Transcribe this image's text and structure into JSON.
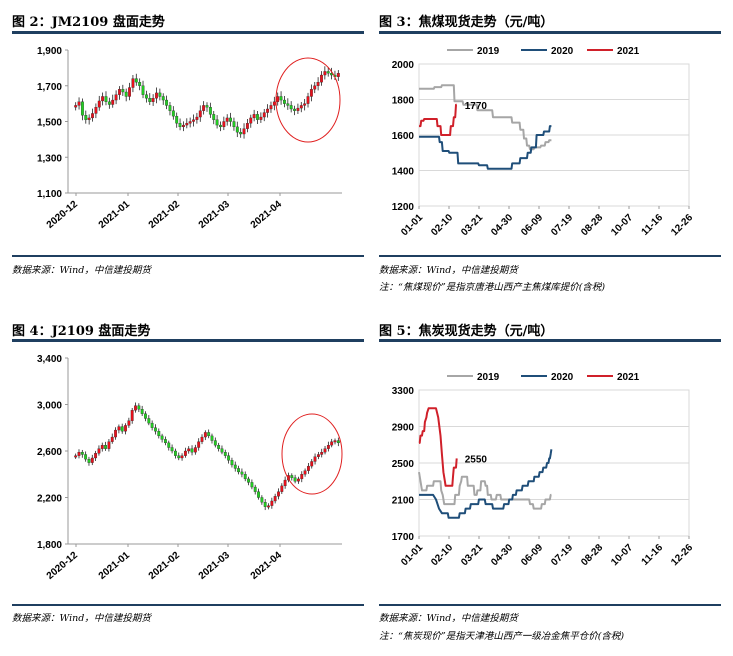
{
  "panels": {
    "p2": {
      "title": "图 2：JM2109 盘面走势",
      "source": "数据来源：Wind，中信建投期货"
    },
    "p3": {
      "title": "图 3：焦煤现货走势（元/吨）",
      "source": "数据来源：Wind，中信建投期货",
      "note": "注：“焦煤现价”是指京唐港山西产主焦煤库提价(含税)"
    },
    "p4": {
      "title": "图 4：J2109 盘面走势",
      "source": "数据来源：Wind，中信建投期货"
    },
    "p5": {
      "title": "图 5：焦炭现货走势（元/吨）",
      "source": "数据来源：Wind，中信建投期货",
      "note": "注：“焦炭现价”是指天津港山西产一级冶金焦平仓价(含税)"
    }
  },
  "colors": {
    "rule": "#1f3f60",
    "up": "#e8101c",
    "down": "#22cc22",
    "wick": "#222222",
    "s2019": "#a6a6a6",
    "s2020": "#1f4e79",
    "s2021": "#d0202a",
    "circle": "#e02020"
  },
  "chart_data": [
    {
      "type": "candlestick",
      "title": "JM2109 盘面走势",
      "x_tick_labels": [
        "2020-12",
        "2021-01",
        "2021-02",
        "2021-03",
        "2021-04"
      ],
      "y_ticks": [
        "1,100",
        "1,300",
        "1,500",
        "1,700",
        "1,900"
      ],
      "ylim": [
        1100,
        1900
      ],
      "approx_close": [
        1590,
        1610,
        1535,
        1510,
        1520,
        1545,
        1580,
        1615,
        1640,
        1610,
        1595,
        1620,
        1650,
        1680,
        1665,
        1640,
        1690,
        1740,
        1720,
        1700,
        1650,
        1630,
        1610,
        1630,
        1660,
        1640,
        1620,
        1590,
        1560,
        1530,
        1490,
        1470,
        1480,
        1490,
        1500,
        1510,
        1525,
        1560,
        1590,
        1580,
        1540,
        1510,
        1480,
        1470,
        1500,
        1520,
        1500,
        1470,
        1440,
        1430,
        1460,
        1490,
        1520,
        1540,
        1510,
        1525,
        1550,
        1570,
        1590,
        1610,
        1640,
        1620,
        1600,
        1590,
        1570,
        1560,
        1575,
        1590,
        1600,
        1640,
        1680,
        1700,
        1720,
        1760,
        1780,
        1770,
        1760,
        1750,
        1770
      ],
      "annotation": "red circle around latest rally"
    },
    {
      "type": "line",
      "title": "焦煤现货走势（元/吨）",
      "x_tick_labels": [
        "01-01",
        "02-10",
        "03-21",
        "04-30",
        "06-09",
        "07-19",
        "08-28",
        "10-07",
        "11-16",
        "12-26"
      ],
      "y_ticks": [
        "1200",
        "1400",
        "1600",
        "1800",
        "2000"
      ],
      "ylim": [
        1200,
        2000
      ],
      "label": "1770",
      "series": [
        {
          "name": "2019",
          "points": [
            [
              1,
              1860
            ],
            [
              21,
              1860
            ],
            [
              22,
              1870
            ],
            [
              31,
              1870
            ],
            [
              32,
              1880
            ],
            [
              48,
              1880
            ],
            [
              49,
              1790
            ],
            [
              60,
              1790
            ],
            [
              61,
              1770
            ],
            [
              79,
              1770
            ],
            [
              80,
              1740
            ],
            [
              100,
              1740
            ],
            [
              101,
              1700
            ],
            [
              126,
              1700
            ],
            [
              127,
              1670
            ],
            [
              137,
              1670
            ],
            [
              138,
              1630
            ],
            [
              142,
              1630
            ],
            [
              143,
              1580
            ],
            [
              146,
              1580
            ],
            [
              147,
              1540
            ],
            [
              150,
              1540
            ],
            [
              151,
              1520
            ],
            [
              156,
              1520
            ],
            [
              157,
              1530
            ],
            [
              165,
              1530
            ],
            [
              166,
              1540
            ],
            [
              171,
              1540
            ],
            [
              172,
              1560
            ],
            [
              176,
              1560
            ],
            [
              177,
              1570
            ],
            [
              180,
              1570
            ]
          ]
        },
        {
          "name": "2020",
          "points": [
            [
              1,
              1590
            ],
            [
              28,
              1590
            ],
            [
              29,
              1560
            ],
            [
              32,
              1560
            ],
            [
              33,
              1510
            ],
            [
              41,
              1510
            ],
            [
              42,
              1500
            ],
            [
              53,
              1500
            ],
            [
              54,
              1440
            ],
            [
              81,
              1440
            ],
            [
              82,
              1430
            ],
            [
              93,
              1430
            ],
            [
              94,
              1410
            ],
            [
              126,
              1410
            ],
            [
              127,
              1440
            ],
            [
              137,
              1440
            ],
            [
              138,
              1470
            ],
            [
              147,
              1470
            ],
            [
              148,
              1500
            ],
            [
              152,
              1500
            ],
            [
              153,
              1530
            ],
            [
              159,
              1530
            ],
            [
              160,
              1600
            ],
            [
              169,
              1600
            ],
            [
              170,
              1620
            ],
            [
              177,
              1620
            ],
            [
              178,
              1650
            ],
            [
              180,
              1650
            ]
          ]
        },
        {
          "name": "2021",
          "points": [
            [
              1,
              1650
            ],
            [
              3,
              1650
            ],
            [
              4,
              1680
            ],
            [
              7,
              1680
            ],
            [
              8,
              1690
            ],
            [
              25,
              1690
            ],
            [
              26,
              1650
            ],
            [
              30,
              1650
            ],
            [
              31,
              1600
            ],
            [
              43,
              1600
            ],
            [
              44,
              1650
            ],
            [
              47,
              1650
            ],
            [
              48,
              1700
            ],
            [
              50,
              1700
            ],
            [
              51,
              1770
            ],
            [
              52,
              1770
            ]
          ]
        }
      ]
    },
    {
      "type": "candlestick",
      "title": "J2109 盘面走势",
      "x_tick_labels": [
        "2020-12",
        "2021-01",
        "2021-02",
        "2021-03",
        "2021-04"
      ],
      "y_ticks": [
        "1,800",
        "2,200",
        "2,600",
        "3,000",
        "3,400"
      ],
      "ylim": [
        1800,
        3400
      ],
      "approx_close": [
        2560,
        2590,
        2570,
        2530,
        2500,
        2540,
        2580,
        2620,
        2650,
        2620,
        2680,
        2720,
        2780,
        2810,
        2770,
        2820,
        2860,
        2950,
        2990,
        2960,
        2920,
        2880,
        2840,
        2800,
        2770,
        2730,
        2700,
        2670,
        2630,
        2600,
        2560,
        2540,
        2560,
        2600,
        2620,
        2590,
        2630,
        2680,
        2720,
        2760,
        2730,
        2690,
        2650,
        2620,
        2590,
        2560,
        2520,
        2480,
        2450,
        2420,
        2400,
        2360,
        2330,
        2290,
        2250,
        2200,
        2160,
        2120,
        2130,
        2170,
        2210,
        2250,
        2300,
        2350,
        2390,
        2370,
        2340,
        2360,
        2400,
        2430,
        2470,
        2510,
        2550,
        2570,
        2590,
        2620,
        2650,
        2680,
        2690,
        2670
      ],
      "annotation": "red circle around latest rally"
    },
    {
      "type": "line",
      "title": "焦炭现货走势（元/吨）",
      "x_tick_labels": [
        "01-01",
        "02-10",
        "03-21",
        "04-30",
        "06-09",
        "07-19",
        "08-28",
        "10-07",
        "11-16",
        "12-26"
      ],
      "y_ticks": [
        "1700",
        "2100",
        "2500",
        "2900",
        "3300"
      ],
      "ylim": [
        1700,
        3300
      ],
      "label": "2550",
      "series": [
        {
          "name": "2019",
          "points": [
            [
              1,
              2400
            ],
            [
              3,
              2300
            ],
            [
              5,
              2200
            ],
            [
              11,
              2200
            ],
            [
              12,
              2250
            ],
            [
              20,
              2250
            ],
            [
              21,
              2300
            ],
            [
              30,
              2300
            ],
            [
              31,
              2200
            ],
            [
              33,
              2150
            ],
            [
              35,
              2050
            ],
            [
              49,
              2050
            ],
            [
              50,
              2150
            ],
            [
              55,
              2150
            ],
            [
              56,
              2250
            ],
            [
              58,
              2300
            ],
            [
              59,
              2350
            ],
            [
              66,
              2350
            ],
            [
              67,
              2250
            ],
            [
              75,
              2250
            ],
            [
              76,
              2150
            ],
            [
              79,
              2150
            ],
            [
              80,
              2200
            ],
            [
              84,
              2200
            ],
            [
              85,
              2300
            ],
            [
              90,
              2300
            ],
            [
              91,
              2250
            ],
            [
              93,
              2250
            ],
            [
              94,
              2150
            ],
            [
              98,
              2150
            ],
            [
              99,
              2100
            ],
            [
              105,
              2100
            ],
            [
              106,
              2150
            ],
            [
              111,
              2150
            ],
            [
              112,
              2100
            ],
            [
              150,
              2100
            ],
            [
              151,
              2050
            ],
            [
              155,
              2050
            ],
            [
              156,
              2000
            ],
            [
              166,
              2000
            ],
            [
              167,
              2050
            ],
            [
              171,
              2050
            ],
            [
              172,
              2100
            ],
            [
              178,
              2100
            ],
            [
              179,
              2150
            ],
            [
              180,
              2150
            ]
          ]
        },
        {
          "name": "2020",
          "points": [
            [
              1,
              2150
            ],
            [
              20,
              2150
            ],
            [
              24,
              2100
            ],
            [
              28,
              2000
            ],
            [
              32,
              1950
            ],
            [
              40,
              1950
            ],
            [
              41,
              1900
            ],
            [
              55,
              1900
            ],
            [
              56,
              1950
            ],
            [
              63,
              1950
            ],
            [
              64,
              2000
            ],
            [
              70,
              2000
            ],
            [
              71,
              2050
            ],
            [
              81,
              2050
            ],
            [
              82,
              2100
            ],
            [
              90,
              2100
            ],
            [
              91,
              2050
            ],
            [
              100,
              2050
            ],
            [
              101,
              2000
            ],
            [
              115,
              2000
            ],
            [
              116,
              2050
            ],
            [
              122,
              2050
            ],
            [
              123,
              2100
            ],
            [
              127,
              2100
            ],
            [
              128,
              2150
            ],
            [
              132,
              2150
            ],
            [
              133,
              2200
            ],
            [
              140,
              2200
            ],
            [
              141,
              2250
            ],
            [
              148,
              2250
            ],
            [
              149,
              2300
            ],
            [
              156,
              2300
            ],
            [
              157,
              2350
            ],
            [
              163,
              2350
            ],
            [
              164,
              2400
            ],
            [
              168,
              2400
            ],
            [
              169,
              2450
            ],
            [
              173,
              2450
            ],
            [
              174,
              2500
            ],
            [
              176,
              2500
            ],
            [
              177,
              2550
            ],
            [
              178,
              2550
            ],
            [
              179,
              2600
            ],
            [
              180,
              2650
            ]
          ]
        },
        {
          "name": "2021",
          "points": [
            [
              1,
              2720
            ],
            [
              2,
              2720
            ],
            [
              3,
              2800
            ],
            [
              5,
              2800
            ],
            [
              6,
              2850
            ],
            [
              8,
              2850
            ],
            [
              9,
              2950
            ],
            [
              11,
              3000
            ],
            [
              12,
              3050
            ],
            [
              14,
              3100
            ],
            [
              24,
              3100
            ],
            [
              27,
              3000
            ],
            [
              30,
              2800
            ],
            [
              32,
              2600
            ],
            [
              34,
              2400
            ],
            [
              36,
              2300
            ],
            [
              37,
              2250
            ],
            [
              46,
              2250
            ],
            [
              47,
              2350
            ],
            [
              48,
              2450
            ],
            [
              51,
              2450
            ],
            [
              52,
              2550
            ]
          ]
        }
      ]
    }
  ]
}
